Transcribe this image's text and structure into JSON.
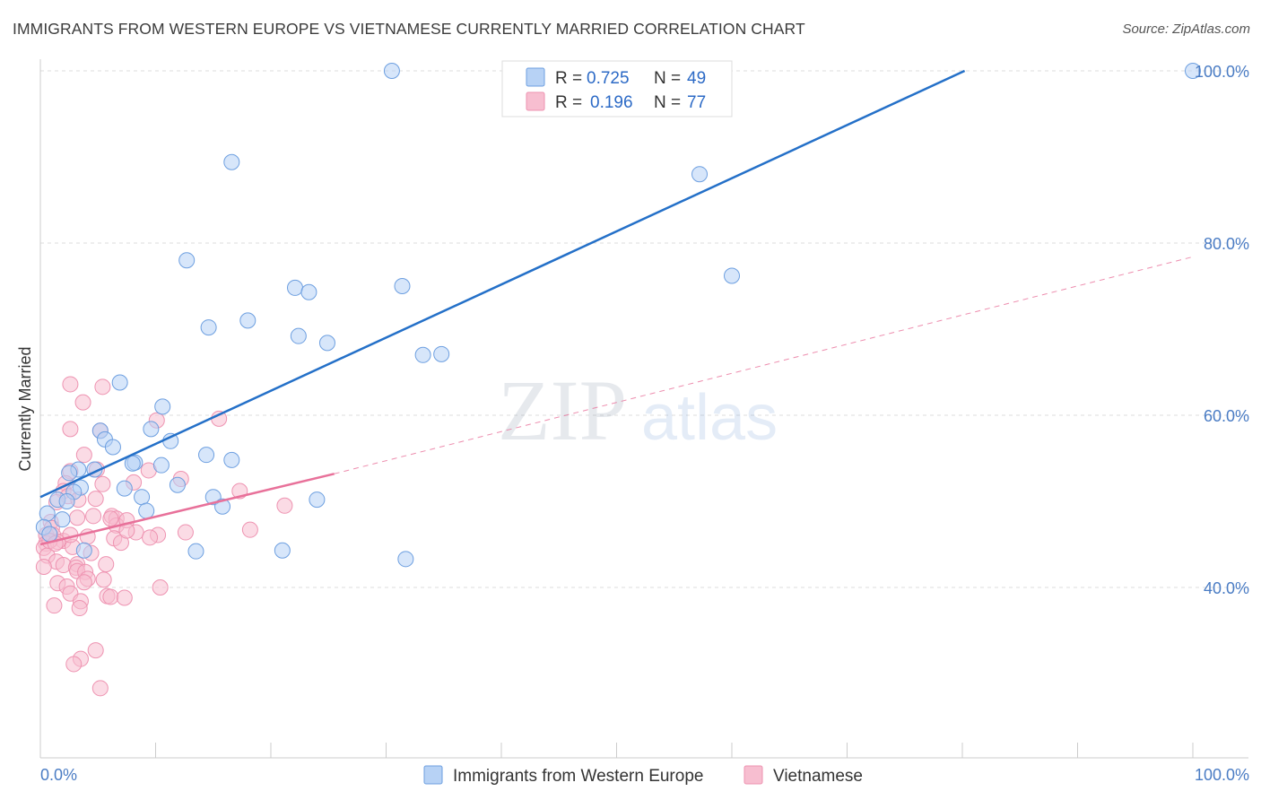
{
  "title": "IMMIGRANTS FROM WESTERN EUROPE VS VIETNAMESE CURRENTLY MARRIED CORRELATION CHART",
  "source": "Source: ZipAtlas.com",
  "watermark": {
    "zip": "ZIP",
    "atlas": "atlas"
  },
  "colors": {
    "blue": "#2470c8",
    "blue_fill": "#b7d2f5",
    "pink": "#e8719a",
    "pink_fill": "#f7bed0",
    "tick": "#4a7cc4",
    "grid": "#dddddd"
  },
  "legend": {
    "blue": {
      "r_label": "R =",
      "r_value": "0.725",
      "n_label": "N =",
      "n_value": "49"
    },
    "pink": {
      "r_label": "R =",
      "r_value": "0.196",
      "n_label": "N =",
      "n_value": "77"
    }
  },
  "bottom_legend": {
    "blue_label": "Immigrants from Western Europe",
    "pink_label": "Vietnamese"
  },
  "chart_data": {
    "type": "scatter",
    "title": "IMMIGRANTS FROM WESTERN EUROPE VS VIETNAMESE CURRENTLY MARRIED CORRELATION CHART",
    "xlabel": "",
    "ylabel": "Currently Married",
    "xlim": [
      0,
      100
    ],
    "ylim": [
      21.5,
      102
    ],
    "x_tick_labels": [
      {
        "value": 0,
        "label": "0.0%"
      },
      {
        "value": 100,
        "label": "100.0%"
      }
    ],
    "y_ticks": [
      {
        "value": 40,
        "label": "40.0%"
      },
      {
        "value": 60,
        "label": "60.0%"
      },
      {
        "value": 80,
        "label": "80.0%"
      },
      {
        "value": 100,
        "label": "100.0%"
      }
    ],
    "series": [
      {
        "name": "Immigrants from Western Europe",
        "color": "#2470c8",
        "r": 0.725,
        "n": 49,
        "trend": {
          "x": [
            0,
            80.2
          ],
          "y": [
            50.5,
            100
          ]
        },
        "points": [
          [
            30.5,
            100
          ],
          [
            100,
            100
          ],
          [
            16.6,
            89.4
          ],
          [
            57.2,
            88.0
          ],
          [
            12.7,
            78.0
          ],
          [
            60.0,
            76.2
          ],
          [
            22.1,
            74.8
          ],
          [
            23.3,
            74.3
          ],
          [
            31.4,
            75.0
          ],
          [
            18.0,
            71.0
          ],
          [
            14.6,
            70.2
          ],
          [
            22.4,
            69.2
          ],
          [
            24.9,
            68.4
          ],
          [
            33.2,
            67.0
          ],
          [
            34.8,
            67.1
          ],
          [
            6.9,
            63.8
          ],
          [
            10.6,
            61.0
          ],
          [
            9.6,
            58.4
          ],
          [
            5.2,
            58.2
          ],
          [
            5.6,
            57.2
          ],
          [
            11.3,
            57.0
          ],
          [
            6.3,
            56.3
          ],
          [
            14.4,
            55.4
          ],
          [
            16.6,
            54.8
          ],
          [
            8.2,
            54.5
          ],
          [
            8.0,
            54.4
          ],
          [
            10.5,
            54.2
          ],
          [
            3.3,
            53.7
          ],
          [
            4.7,
            53.7
          ],
          [
            2.5,
            53.3
          ],
          [
            11.9,
            51.9
          ],
          [
            7.3,
            51.5
          ],
          [
            3.5,
            51.6
          ],
          [
            2.9,
            51.1
          ],
          [
            8.8,
            50.5
          ],
          [
            15.0,
            50.5
          ],
          [
            24.0,
            50.2
          ],
          [
            1.5,
            50.2
          ],
          [
            2.3,
            50.0
          ],
          [
            15.8,
            49.4
          ],
          [
            9.2,
            48.9
          ],
          [
            0.6,
            48.6
          ],
          [
            1.9,
            47.9
          ],
          [
            0.3,
            47.0
          ],
          [
            0.8,
            46.2
          ],
          [
            3.8,
            44.3
          ],
          [
            13.5,
            44.2
          ],
          [
            21.0,
            44.3
          ],
          [
            31.7,
            43.3
          ]
        ]
      },
      {
        "name": "Vietnamese",
        "color": "#e8719a",
        "r": 0.196,
        "n": 77,
        "trend": {
          "x": [
            0,
            25.5
          ],
          "y": [
            45.0,
            53.2
          ]
        },
        "trend_ext": {
          "x": [
            25.5,
            100
          ],
          "y": [
            53.2,
            78.4
          ]
        },
        "points": [
          [
            2.6,
            63.6
          ],
          [
            5.4,
            63.3
          ],
          [
            3.7,
            61.5
          ],
          [
            10.1,
            59.4
          ],
          [
            15.5,
            59.6
          ],
          [
            2.6,
            58.4
          ],
          [
            5.2,
            58.2
          ],
          [
            3.8,
            55.4
          ],
          [
            9.4,
            53.6
          ],
          [
            2.6,
            53.5
          ],
          [
            4.9,
            53.7
          ],
          [
            12.2,
            52.6
          ],
          [
            2.2,
            52.1
          ],
          [
            5.4,
            52.0
          ],
          [
            8.1,
            52.2
          ],
          [
            2.0,
            51.2
          ],
          [
            2.4,
            50.6
          ],
          [
            17.3,
            51.2
          ],
          [
            3.3,
            50.2
          ],
          [
            4.8,
            50.3
          ],
          [
            1.4,
            49.9
          ],
          [
            21.2,
            49.5
          ],
          [
            6.2,
            48.3
          ],
          [
            4.6,
            48.3
          ],
          [
            3.2,
            48.1
          ],
          [
            6.6,
            48.0
          ],
          [
            0.9,
            47.6
          ],
          [
            6.6,
            47.2
          ],
          [
            1.0,
            46.9
          ],
          [
            12.6,
            46.4
          ],
          [
            18.2,
            46.7
          ],
          [
            8.3,
            46.4
          ],
          [
            10.2,
            46.1
          ],
          [
            0.5,
            46.1
          ],
          [
            1.1,
            46.1
          ],
          [
            4.1,
            45.9
          ],
          [
            6.4,
            45.7
          ],
          [
            7.0,
            45.2
          ],
          [
            2.0,
            45.4
          ],
          [
            1.5,
            45.3
          ],
          [
            0.5,
            45.1
          ],
          [
            0.3,
            44.6
          ],
          [
            2.8,
            44.7
          ],
          [
            4.4,
            44.0
          ],
          [
            0.6,
            43.7
          ],
          [
            1.4,
            43.0
          ],
          [
            3.2,
            42.7
          ],
          [
            5.7,
            42.7
          ],
          [
            2.0,
            42.6
          ],
          [
            3.1,
            42.3
          ],
          [
            0.3,
            42.4
          ],
          [
            3.2,
            41.9
          ],
          [
            3.9,
            41.8
          ],
          [
            4.1,
            41.0
          ],
          [
            3.8,
            40.6
          ],
          [
            5.5,
            40.9
          ],
          [
            1.5,
            40.5
          ],
          [
            10.4,
            40.0
          ],
          [
            2.3,
            40.1
          ],
          [
            2.6,
            39.3
          ],
          [
            5.8,
            39.0
          ],
          [
            6.1,
            38.9
          ],
          [
            3.5,
            38.4
          ],
          [
            1.2,
            37.9
          ],
          [
            3.4,
            37.6
          ],
          [
            4.8,
            32.7
          ],
          [
            3.5,
            31.7
          ],
          [
            2.9,
            31.1
          ],
          [
            5.2,
            28.3
          ],
          [
            6.1,
            48.0
          ],
          [
            7.5,
            47.8
          ],
          [
            7.5,
            46.6
          ],
          [
            9.5,
            45.8
          ],
          [
            0.8,
            45.4
          ],
          [
            1.3,
            45.1
          ],
          [
            2.6,
            46.1
          ],
          [
            7.3,
            38.8
          ]
        ]
      }
    ]
  }
}
